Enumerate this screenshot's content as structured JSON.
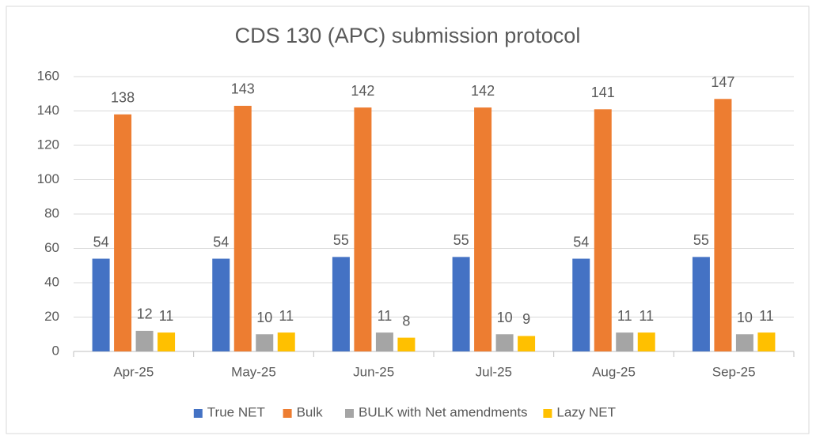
{
  "chart_data": {
    "type": "bar",
    "title": "CDS 130 (APC) submission protocol",
    "categories": [
      "Apr-25",
      "May-25",
      "Jun-25",
      "Jul-25",
      "Aug-25",
      "Sep-25"
    ],
    "series": [
      {
        "name": "True NET",
        "color": "#4472c4",
        "values": [
          54,
          54,
          55,
          55,
          54,
          55
        ]
      },
      {
        "name": "Bulk",
        "color": "#ed7d31",
        "values": [
          138,
          143,
          142,
          142,
          141,
          147
        ]
      },
      {
        "name": "BULK with Net amendments",
        "color": "#a5a5a5",
        "values": [
          12,
          10,
          11,
          10,
          11,
          10
        ]
      },
      {
        "name": "Lazy NET",
        "color": "#ffc000",
        "values": [
          11,
          11,
          8,
          9,
          11,
          11
        ]
      }
    ],
    "ylim": [
      0,
      160
    ],
    "yticks": [
      0,
      20,
      40,
      60,
      80,
      100,
      120,
      140,
      160
    ],
    "grid": true,
    "legend": "bottom"
  }
}
